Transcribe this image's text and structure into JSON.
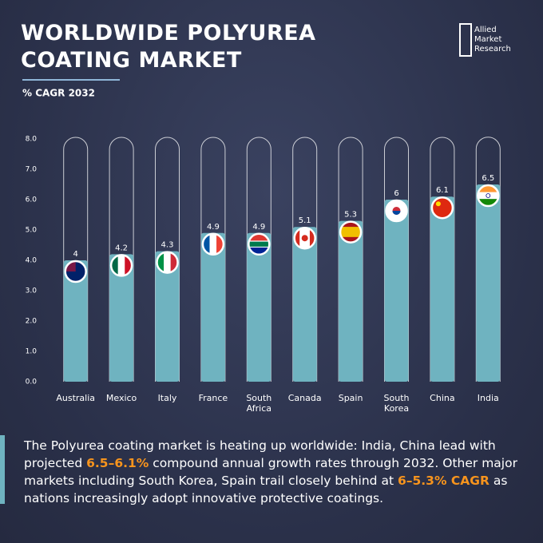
{
  "title_lines": [
    "WORLDWIDE POLYUREA",
    "COATING MARKET"
  ],
  "subtitle": "% CAGR 2032",
  "logo": [
    "Allied",
    "Market",
    "Research"
  ],
  "chart_data": {
    "type": "bar",
    "categories": [
      "Australia",
      "Mexico",
      "Italy",
      "France",
      "South Africa",
      "Canada",
      "Spain",
      "South Korea",
      "China",
      "India"
    ],
    "values": [
      4,
      4.2,
      4.3,
      4.9,
      4.9,
      5.1,
      5.3,
      6,
      6.1,
      6.5
    ],
    "color": "#6fb3c0",
    "ylim": [
      0,
      8
    ],
    "yticks": [
      {
        "value": 0,
        "label": "0.0"
      },
      {
        "value": 1,
        "label": "1.0"
      },
      {
        "value": 2,
        "label": "2.0"
      },
      {
        "value": 3,
        "label": "3.0"
      },
      {
        "value": 4,
        "label": "4.0"
      },
      {
        "value": 5,
        "label": "5.0"
      },
      {
        "value": 6,
        "label": "6.0"
      },
      {
        "value": 7,
        "label": "7.0"
      },
      {
        "value": 8,
        "label": "8.0"
      }
    ]
  },
  "paragraph": [
    "The Polyurea coating market is heating up worldwide: India, China lead with projected ",
    "6.5–6.1%",
    " compound annual growth rates through 2032. Other major markets including South Korea, Spain trail closely behind at ",
    "6–5.3% CAGR",
    " as nations increasingly adopt innovative protective coatings."
  ]
}
